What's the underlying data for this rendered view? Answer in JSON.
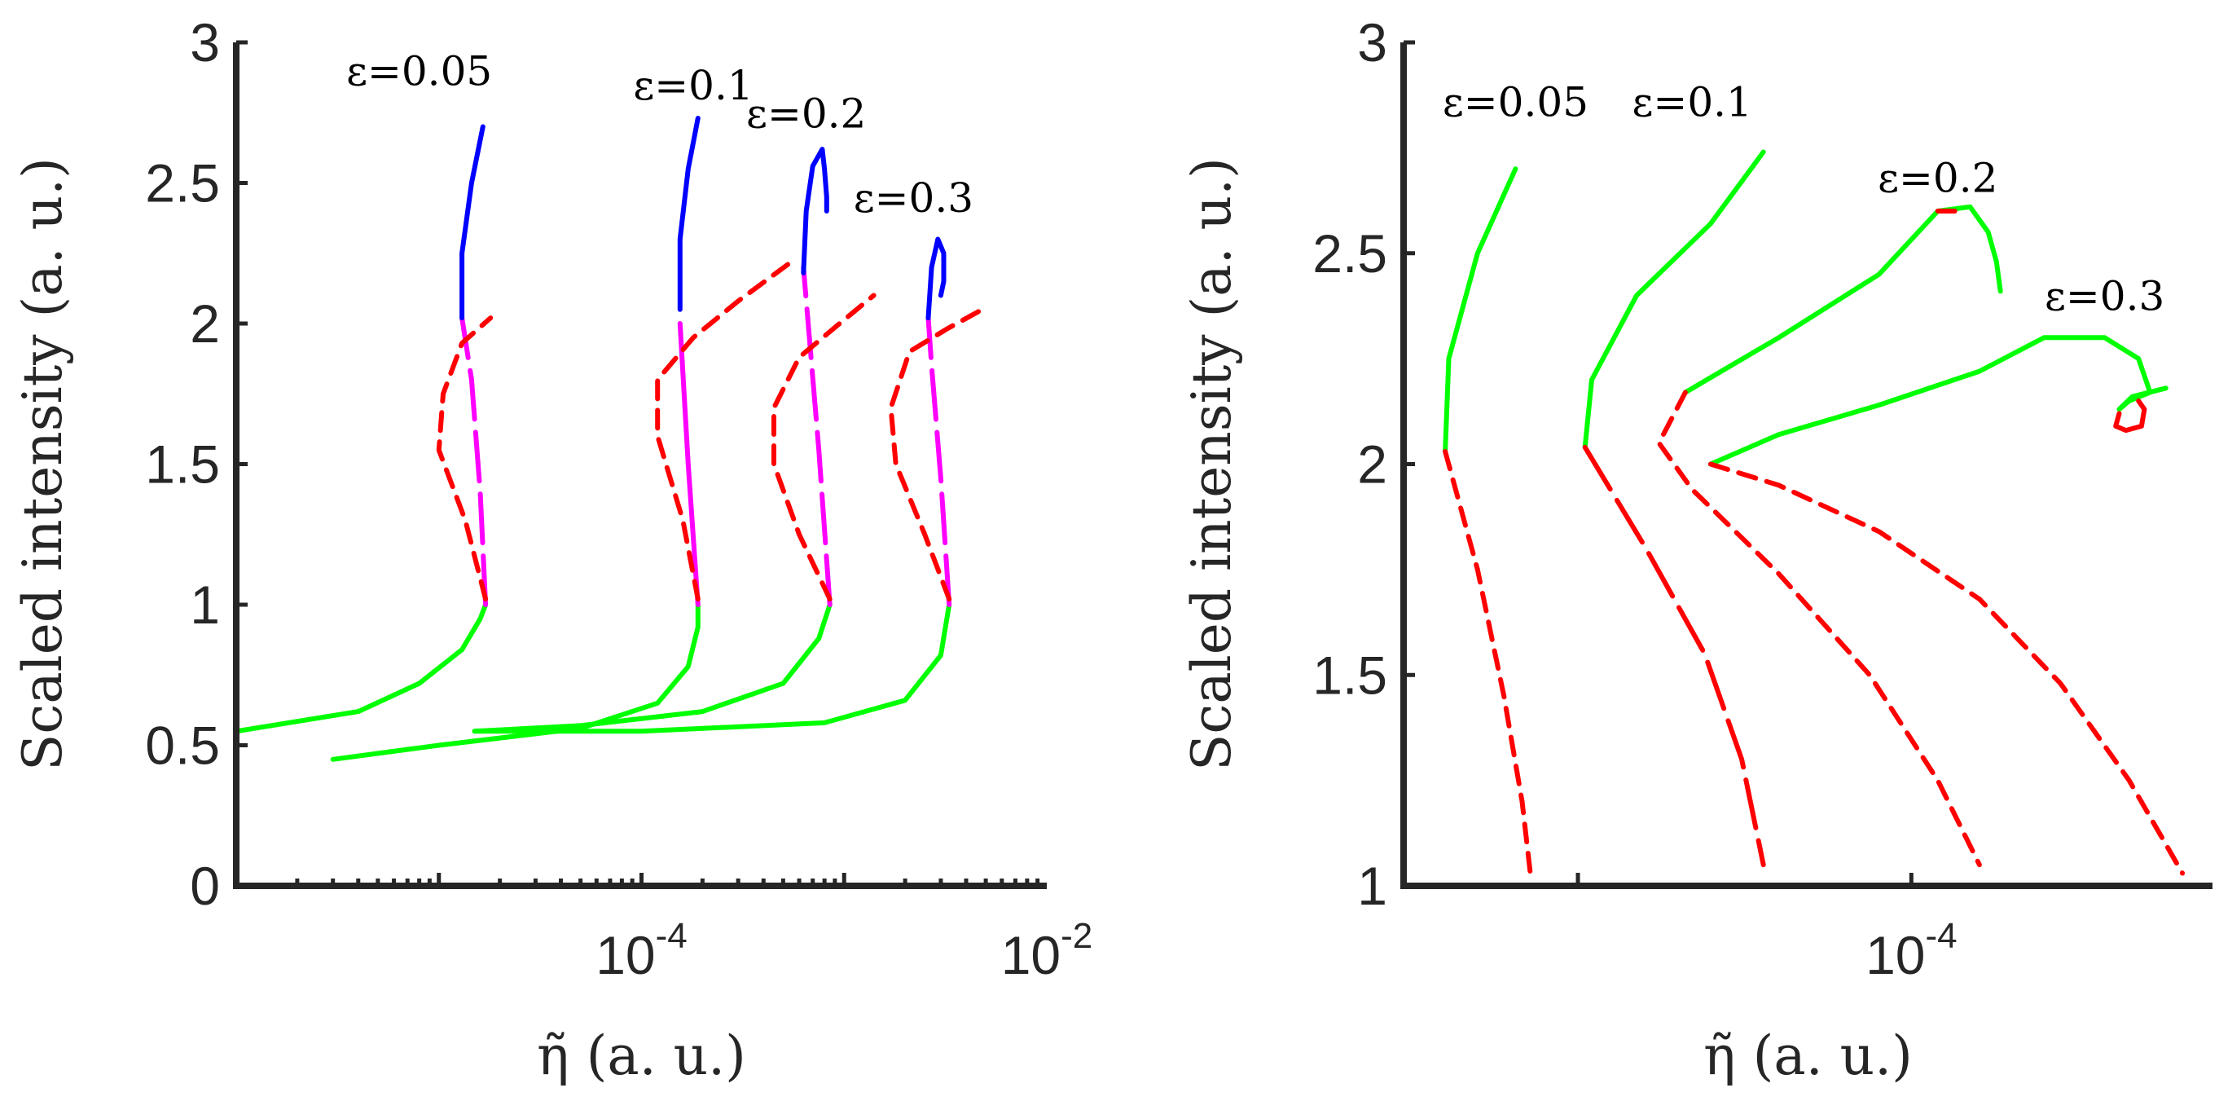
{
  "colors": {
    "stable_low": "#00ff00",
    "unstable": "#ff0000",
    "middle": "#ff00ff",
    "stable_high": "#0000ff",
    "axis": "#262626"
  },
  "chart_data": [
    {
      "type": "line",
      "panel": "left",
      "xscale": "log",
      "xlabel": "η̃ (a. u.)",
      "ylabel": "Scaled intensity (a. u.)",
      "xlim": [
        1e-06,
        0.01
      ],
      "ylim": [
        0,
        3
      ],
      "yticks": [
        0,
        0.5,
        1,
        1.5,
        2,
        2.5,
        3
      ],
      "ytick_labels": [
        "0",
        "0.5",
        "1",
        "1.5",
        "2",
        "2.5",
        "3"
      ],
      "xticks": [
        {
          "value": 0.0001,
          "base": "10",
          "exp": "-4"
        },
        {
          "value": 0.01,
          "base": "10",
          "exp": "-2"
        }
      ],
      "annotations": [
        {
          "text": "ε=0.05",
          "x": 8e-06,
          "y": 2.9
        },
        {
          "text": "ε=0.1",
          "x": 0.00018,
          "y": 2.85
        },
        {
          "text": "ε=0.2",
          "x": 0.00065,
          "y": 2.75
        },
        {
          "text": "ε=0.3",
          "x": 0.0022,
          "y": 2.45
        }
      ],
      "series": [
        {
          "name": "ε=0.05 lower stable",
          "color": "#00ff00",
          "dash": "solid",
          "x": [
            1e-06,
            4e-06,
            8e-06,
            1.3e-05,
            1.6e-05,
            1.7e-05
          ],
          "y": [
            0.55,
            0.62,
            0.72,
            0.84,
            0.95,
            1.0
          ]
        },
        {
          "name": "ε=0.05 middle branch",
          "color": "#ff00ff",
          "dash": "long",
          "x": [
            1.7e-05,
            1.6e-05,
            1.45e-05,
            1.3e-05
          ],
          "y": [
            1.0,
            1.4,
            1.8,
            2.02
          ]
        },
        {
          "name": "ε=0.05 unstable",
          "color": "#ff0000",
          "dash": "short",
          "x": [
            1.7e-05,
            1.35e-05,
            1e-05,
            1.05e-05,
            1.3e-05,
            1.8e-05
          ],
          "y": [
            1.02,
            1.3,
            1.55,
            1.75,
            1.93,
            2.02
          ]
        },
        {
          "name": "ε=0.05 upper stable",
          "color": "#0000ff",
          "dash": "solid",
          "x": [
            1.3e-05,
            1.3e-05,
            1.45e-05,
            1.65e-05
          ],
          "y": [
            2.02,
            2.25,
            2.5,
            2.7
          ]
        },
        {
          "name": "ε=0.1 lower stable",
          "color": "#00ff00",
          "dash": "solid",
          "x": [
            3e-06,
            1e-05,
            5e-05,
            0.00012,
            0.00017,
            0.00019,
            0.00019
          ],
          "y": [
            0.45,
            0.5,
            0.56,
            0.65,
            0.78,
            0.92,
            1.0
          ]
        },
        {
          "name": "ε=0.1 middle branch",
          "color": "#ff00ff",
          "dash": "solid",
          "x": [
            0.00019,
            0.00017,
            0.000155
          ],
          "y": [
            1.0,
            1.5,
            2.0
          ]
        },
        {
          "name": "ε=0.1 unstable",
          "color": "#ff0000",
          "dash": "short",
          "x": [
            0.00019,
            0.00016,
            0.00012,
            0.00012,
            0.00018,
            0.0003,
            0.00055
          ],
          "y": [
            1.02,
            1.3,
            1.6,
            1.8,
            1.95,
            2.08,
            2.22
          ]
        },
        {
          "name": "ε=0.1 upper stable",
          "color": "#0000ff",
          "dash": "solid",
          "x": [
            0.000155,
            0.000155,
            0.00017,
            0.00019
          ],
          "y": [
            2.05,
            2.3,
            2.55,
            2.73
          ]
        },
        {
          "name": "ε=0.2 lower stable",
          "color": "#00ff00",
          "dash": "solid",
          "x": [
            1.5e-05,
            5e-05,
            0.0002,
            0.0005,
            0.00075,
            0.00085
          ],
          "y": [
            0.55,
            0.57,
            0.62,
            0.72,
            0.88,
            1.0
          ]
        },
        {
          "name": "ε=0.2 middle branch",
          "color": "#ff00ff",
          "dash": "long",
          "x": [
            0.00085,
            0.00075,
            0.00063
          ],
          "y": [
            1.0,
            1.55,
            2.2
          ]
        },
        {
          "name": "ε=0.2 unstable",
          "color": "#ff0000",
          "dash": "short",
          "x": [
            0.00085,
            0.0006,
            0.00045,
            0.00045,
            0.0006,
            0.00095,
            0.0014
          ],
          "y": [
            1.02,
            1.25,
            1.5,
            1.7,
            1.88,
            2.0,
            2.1
          ]
        },
        {
          "name": "ε=0.2 upper stable",
          "color": "#0000ff",
          "dash": "solid",
          "x": [
            0.00063,
            0.00065,
            0.0007,
            0.00078,
            0.0008,
            0.00082,
            0.00082
          ],
          "y": [
            2.18,
            2.4,
            2.56,
            2.62,
            2.55,
            2.45,
            2.4
          ]
        },
        {
          "name": "ε=0.3 lower stable",
          "color": "#00ff00",
          "dash": "solid",
          "x": [
            1.5e-05,
            0.0001,
            0.0008,
            0.002,
            0.003,
            0.0033
          ],
          "y": [
            0.55,
            0.55,
            0.58,
            0.66,
            0.82,
            1.0
          ]
        },
        {
          "name": "ε=0.3 middle branch",
          "color": "#ff00ff",
          "dash": "long",
          "x": [
            0.0033,
            0.003,
            0.0027,
            0.0026
          ],
          "y": [
            1.0,
            1.45,
            1.85,
            2.02
          ]
        },
        {
          "name": "ε=0.3 unstable",
          "color": "#ff0000",
          "dash": "short",
          "x": [
            0.0033,
            0.0025,
            0.0018,
            0.0017,
            0.0021,
            0.0032,
            0.0048
          ],
          "y": [
            1.02,
            1.25,
            1.5,
            1.7,
            1.9,
            1.98,
            2.05
          ]
        },
        {
          "name": "ε=0.3 upper stable",
          "color": "#0000ff",
          "dash": "solid",
          "x": [
            0.0026,
            0.0027,
            0.0029,
            0.0031,
            0.0031,
            0.003
          ],
          "y": [
            2.02,
            2.2,
            2.3,
            2.25,
            2.15,
            2.1
          ]
        }
      ]
    },
    {
      "type": "line",
      "panel": "right",
      "xscale": "log",
      "xlabel": "η̃ (a. u.)",
      "ylabel": "Scaled intensity (a. u.)",
      "xlim": [
        3e-06,
        0.0008
      ],
      "ylim": [
        1,
        3
      ],
      "yticks": [
        1,
        1.5,
        2,
        2.5,
        3
      ],
      "ytick_labels": [
        "1",
        "1.5",
        "2",
        "2.5",
        "3"
      ],
      "xticks": [
        {
          "value": 0.0001,
          "base": "10",
          "exp": "-4"
        }
      ],
      "annotations": [
        {
          "text": "ε=0.05",
          "x": 6.5e-06,
          "y": 2.86
        },
        {
          "text": "ε=0.1",
          "x": 2.2e-05,
          "y": 2.86
        },
        {
          "text": "ε=0.2",
          "x": 0.00012,
          "y": 2.68
        },
        {
          "text": "ε=0.3",
          "x": 0.00038,
          "y": 2.4
        }
      ],
      "series": [
        {
          "name": "ε=0.05 stable",
          "color": "#00ff00",
          "dash": "solid",
          "x": [
            4e-06,
            4.1e-06,
            5e-06,
            6.5e-06
          ],
          "y": [
            2.03,
            2.25,
            2.5,
            2.7
          ]
        },
        {
          "name": "ε=0.05 unstable",
          "color": "#ff0000",
          "dash": "short",
          "x": [
            4e-06,
            5e-06,
            6e-06,
            6.8e-06,
            7.2e-06
          ],
          "y": [
            2.03,
            1.75,
            1.45,
            1.2,
            1.03
          ]
        },
        {
          "name": "ε=0.1 stable",
          "color": "#00ff00",
          "dash": "solid",
          "x": [
            1.05e-05,
            1.1e-05,
            1.5e-05,
            2.5e-05,
            3.6e-05
          ],
          "y": [
            2.04,
            2.2,
            2.4,
            2.57,
            2.74
          ]
        },
        {
          "name": "ε=0.1 unstable",
          "color": "#ff0000",
          "dash": "long",
          "x": [
            1.05e-05,
            1.6e-05,
            2.4e-05,
            3.1e-05,
            3.6e-05
          ],
          "y": [
            2.04,
            1.8,
            1.55,
            1.3,
            1.05
          ]
        },
        {
          "name": "ε=0.2 stable",
          "color": "#00ff00",
          "dash": "solid",
          "x": [
            2.1e-05,
            4e-05,
            8e-05,
            0.00012,
            0.00015,
            0.00017,
            0.00018,
            0.000185
          ],
          "y": [
            2.17,
            2.3,
            2.45,
            2.6,
            2.61,
            2.55,
            2.48,
            2.41
          ]
        },
        {
          "name": "ε=0.2 unstable",
          "color": "#ff0000",
          "dash": "short",
          "x": [
            2.1e-05,
            1.75e-05,
            2.2e-05,
            4e-05,
            7.5e-05,
            0.00012,
            0.00016
          ],
          "y": [
            2.17,
            2.05,
            1.94,
            1.74,
            1.5,
            1.25,
            1.05
          ]
        },
        {
          "name": "ε=0.2 tip",
          "color": "#ff0000",
          "dash": "solid",
          "x": [
            0.00012,
            0.000135
          ],
          "y": [
            2.6,
            2.6
          ]
        },
        {
          "name": "ε=0.3 stable",
          "color": "#00ff00",
          "dash": "solid",
          "x": [
            2.5e-05,
            4e-05,
            8e-05,
            0.00016,
            0.00025,
            0.00038,
            0.00048,
            0.00052,
            0.00045,
            0.00042,
            0.00046,
            0.00058
          ],
          "y": [
            2.0,
            2.07,
            2.14,
            2.22,
            2.3,
            2.3,
            2.25,
            2.17,
            2.15,
            2.13,
            2.16,
            2.18
          ]
        },
        {
          "name": "ε=0.3 unstable",
          "color": "#ff0000",
          "dash": "short",
          "x": [
            2.5e-05,
            4e-05,
            8e-05,
            0.00016,
            0.00028,
            0.00045,
            0.00065
          ],
          "y": [
            2.0,
            1.95,
            1.84,
            1.68,
            1.48,
            1.25,
            1.03
          ]
        },
        {
          "name": "ε=0.3 loop",
          "color": "#ff0000",
          "dash": "solid",
          "x": [
            0.00042,
            0.00041,
            0.00044,
            0.00049,
            0.0005,
            0.00048
          ],
          "y": [
            2.12,
            2.09,
            2.08,
            2.09,
            2.13,
            2.15
          ]
        }
      ]
    }
  ]
}
